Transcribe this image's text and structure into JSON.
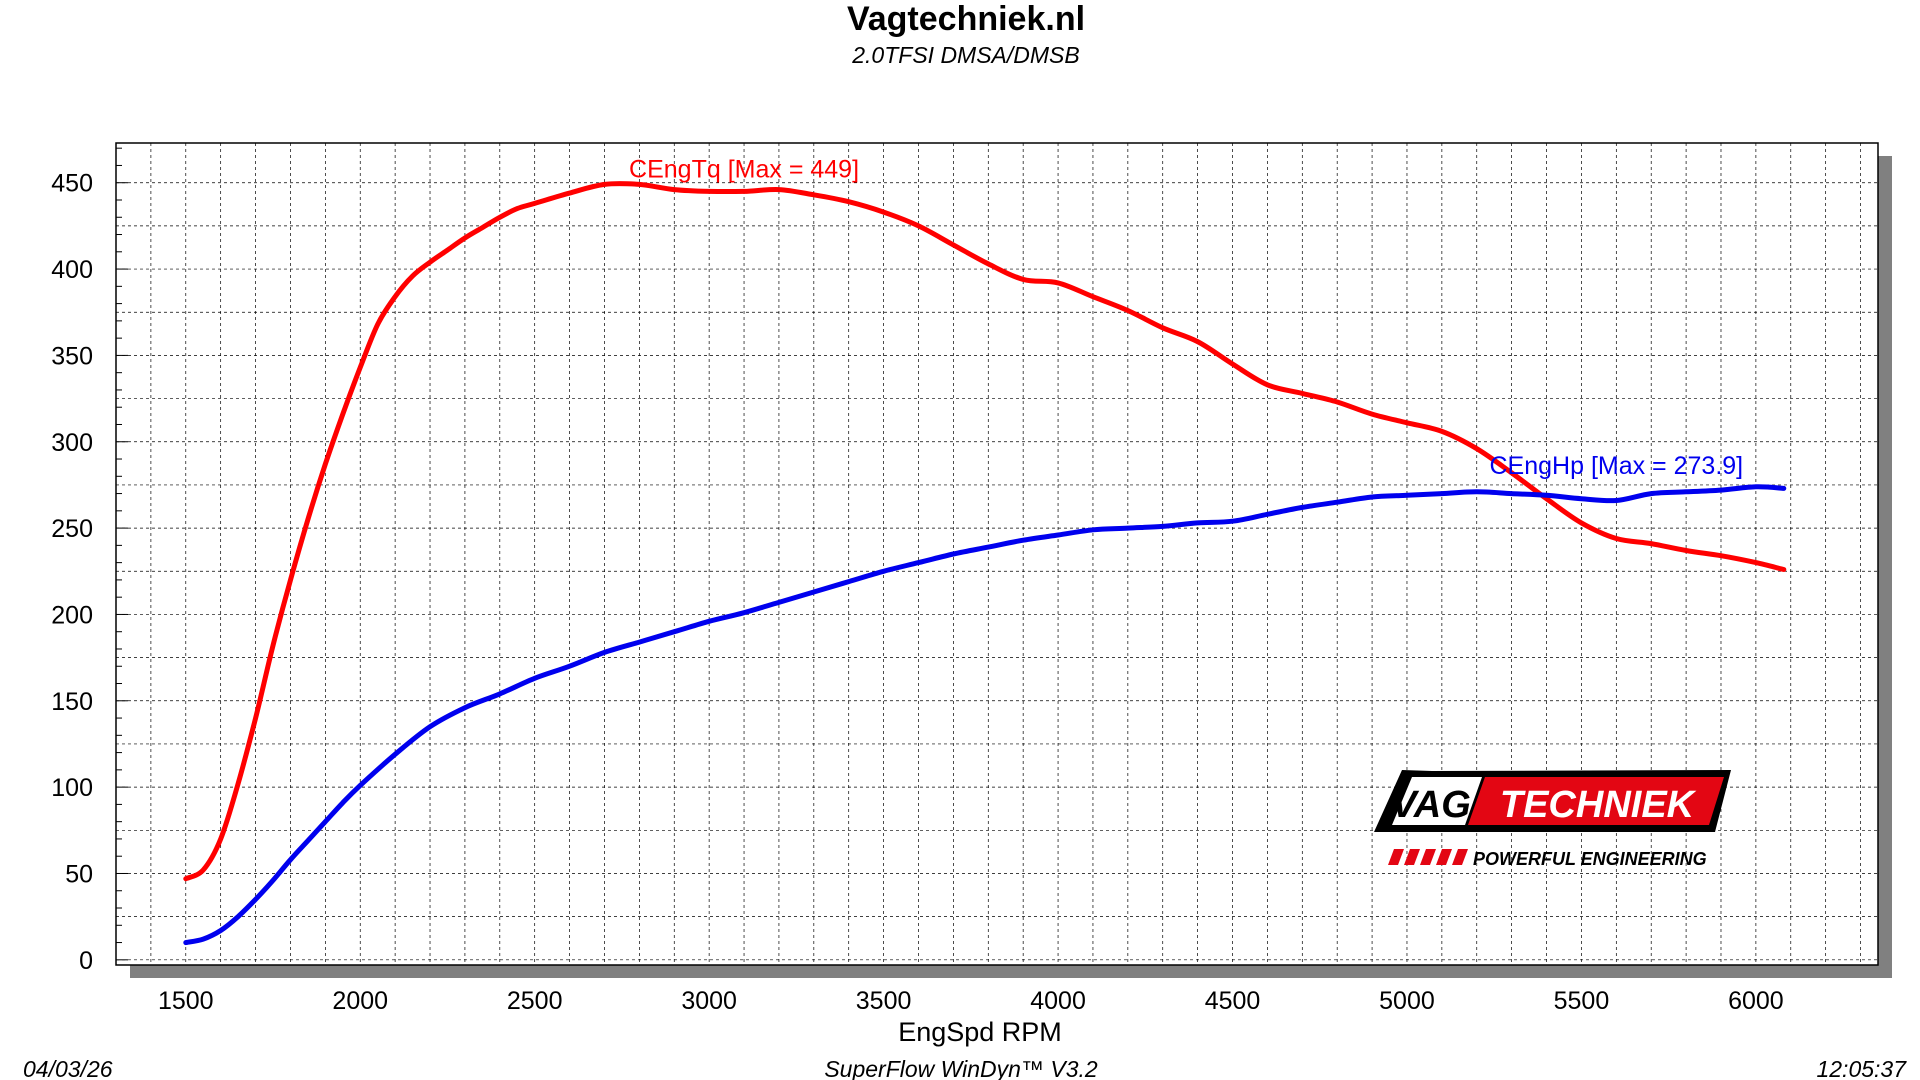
{
  "header": {
    "title": "Vagtechniek.nl",
    "subtitle": "2.0TFSI DMSA/DMSB"
  },
  "footer": {
    "date": "04/03/26",
    "software": "SuperFlow WinDyn™ V3.2",
    "time": "12:05:37"
  },
  "logo": {
    "text_left": "VAG",
    "text_right": "TECHNIEK",
    "tagline": "POWERFUL ENGINEERING",
    "colors": {
      "red": "#e30613",
      "black": "#000000",
      "white": "#ffffff"
    }
  },
  "chart_data": {
    "type": "line",
    "xlabel": "EngSpd RPM",
    "ylabel": "",
    "xlim": [
      1300,
      6350
    ],
    "ylim": [
      -3,
      473
    ],
    "x_ticks": [
      1500,
      2000,
      2500,
      3000,
      3500,
      4000,
      4500,
      5000,
      5500,
      6000
    ],
    "y_ticks": [
      0,
      50,
      100,
      150,
      200,
      250,
      300,
      350,
      400,
      450
    ],
    "grid": true,
    "series": [
      {
        "name": "CEngTq",
        "label": "CEngTq [Max = 449]",
        "color": "#ff0000",
        "x": [
          1500,
          1550,
          1600,
          1650,
          1700,
          1750,
          1800,
          1850,
          1900,
          1950,
          2000,
          2050,
          2100,
          2150,
          2200,
          2250,
          2300,
          2350,
          2400,
          2450,
          2500,
          2600,
          2700,
          2800,
          2900,
          3000,
          3100,
          3200,
          3300,
          3400,
          3500,
          3600,
          3700,
          3800,
          3900,
          4000,
          4100,
          4200,
          4300,
          4400,
          4500,
          4600,
          4700,
          4800,
          4900,
          5000,
          5100,
          5200,
          5300,
          5400,
          5500,
          5600,
          5700,
          5800,
          5900,
          6000,
          6080
        ],
        "y": [
          47,
          52,
          70,
          102,
          140,
          182,
          220,
          255,
          287,
          316,
          343,
          368,
          384,
          396,
          404,
          411,
          418,
          424,
          430,
          435,
          438,
          444,
          449,
          449,
          446,
          445,
          445,
          446,
          443,
          439,
          433,
          425,
          414,
          403,
          394,
          392,
          384,
          376,
          366,
          358,
          345,
          333,
          328,
          323,
          316,
          311,
          306,
          296,
          282,
          267,
          253,
          244,
          241,
          237,
          234,
          230,
          226
        ],
        "y_override": [
          47,
          52,
          70,
          102,
          140,
          182,
          220,
          255,
          287,
          316,
          343,
          368,
          384,
          396,
          404,
          411,
          418,
          424,
          430,
          435,
          438,
          444,
          449,
          449,
          446,
          445,
          445,
          446,
          443,
          439,
          433,
          425,
          414,
          403,
          394,
          392,
          384,
          376,
          366,
          358,
          345,
          333,
          328,
          323,
          316,
          311,
          306,
          296,
          282,
          267,
          253,
          244,
          241,
          237,
          234,
          230,
          226
        ]
      },
      {
        "name": "CEngHp",
        "label": "CEngHp [Max = 273.9]",
        "color": "#0000ee",
        "x": [
          1500,
          1550,
          1600,
          1650,
          1700,
          1750,
          1800,
          1850,
          1900,
          1950,
          2000,
          2100,
          2200,
          2300,
          2400,
          2500,
          2600,
          2700,
          2800,
          2900,
          3000,
          3100,
          3200,
          3300,
          3400,
          3500,
          3600,
          3700,
          3800,
          3900,
          4000,
          4100,
          4200,
          4300,
          4400,
          4500,
          4600,
          4700,
          4800,
          4900,
          5000,
          5100,
          5200,
          5300,
          5400,
          5500,
          5600,
          5700,
          5800,
          5900,
          6000,
          6080
        ],
        "y": [
          10,
          12,
          17,
          25,
          35,
          46,
          58,
          69,
          80,
          91,
          101,
          119,
          135,
          146,
          154,
          163,
          170,
          178,
          184,
          190,
          196,
          201,
          207,
          213,
          219,
          225,
          230,
          235,
          239,
          243,
          246,
          249,
          250,
          251,
          253,
          254,
          258,
          262,
          265,
          268,
          269,
          270,
          271,
          270,
          269,
          267,
          266,
          270,
          271,
          272,
          273.9,
          273
        ]
      }
    ]
  }
}
